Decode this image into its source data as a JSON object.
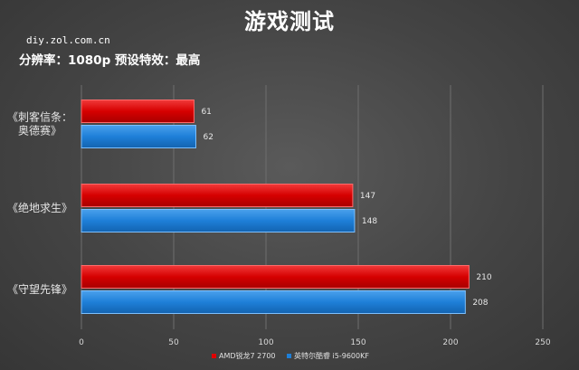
{
  "header": {
    "title": "游戏测试",
    "source": "diy.zol.com.cn",
    "subtitle": "分辨率：1080p 预设特效：最高"
  },
  "colors": {
    "series_1": "#e00000",
    "series_2": "#1e7fd8",
    "grid": "#6e6e6e"
  },
  "chart_data": {
    "type": "bar",
    "orientation": "horizontal",
    "title": "游戏测试",
    "subtitle": "分辨率：1080p 预设特效：最高",
    "categories": [
      [
        "《刺客信条：",
        "奥德赛》"
      ],
      [
        "《绝地求生》"
      ],
      [
        "《守望先锋》"
      ]
    ],
    "series": [
      {
        "name": "AMD锐龙7 2700",
        "values": [
          61,
          147,
          210
        ]
      },
      {
        "name": "英特尔酷睿 i5-9600KF",
        "values": [
          62,
          148,
          208
        ]
      }
    ],
    "xlim": [
      0,
      250
    ],
    "xticks": [
      0,
      50,
      100,
      150,
      200,
      250
    ],
    "grid": true,
    "legend": "bottom-right",
    "data_labels": true
  }
}
